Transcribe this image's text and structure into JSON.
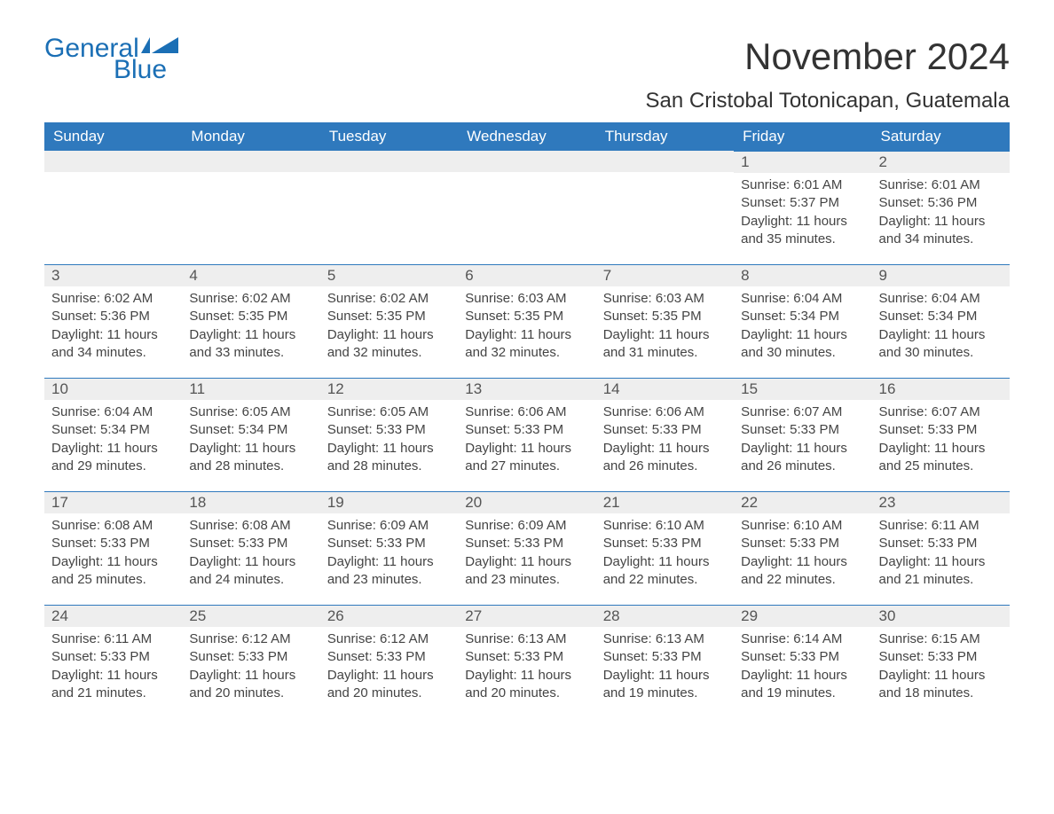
{
  "brand": {
    "word1": "General",
    "word2": "Blue"
  },
  "title": "November 2024",
  "location": "San Cristobal Totonicapan, Guatemala",
  "colors": {
    "header_bg": "#2f79bd",
    "header_text": "#ffffff",
    "daynum_bg": "#eeeeee",
    "border_top": "#2f79bd",
    "brand": "#1b6fb5",
    "body_text": "#444444",
    "page_bg": "#ffffff"
  },
  "day_names": [
    "Sunday",
    "Monday",
    "Tuesday",
    "Wednesday",
    "Thursday",
    "Friday",
    "Saturday"
  ],
  "labels": {
    "sunrise": "Sunrise:",
    "sunset": "Sunset:",
    "daylight": "Daylight:"
  },
  "weeks": [
    [
      null,
      null,
      null,
      null,
      null,
      {
        "day": 1,
        "sunrise": "6:01 AM",
        "sunset": "5:37 PM",
        "daylight": "11 hours and 35 minutes."
      },
      {
        "day": 2,
        "sunrise": "6:01 AM",
        "sunset": "5:36 PM",
        "daylight": "11 hours and 34 minutes."
      }
    ],
    [
      {
        "day": 3,
        "sunrise": "6:02 AM",
        "sunset": "5:36 PM",
        "daylight": "11 hours and 34 minutes."
      },
      {
        "day": 4,
        "sunrise": "6:02 AM",
        "sunset": "5:35 PM",
        "daylight": "11 hours and 33 minutes."
      },
      {
        "day": 5,
        "sunrise": "6:02 AM",
        "sunset": "5:35 PM",
        "daylight": "11 hours and 32 minutes."
      },
      {
        "day": 6,
        "sunrise": "6:03 AM",
        "sunset": "5:35 PM",
        "daylight": "11 hours and 32 minutes."
      },
      {
        "day": 7,
        "sunrise": "6:03 AM",
        "sunset": "5:35 PM",
        "daylight": "11 hours and 31 minutes."
      },
      {
        "day": 8,
        "sunrise": "6:04 AM",
        "sunset": "5:34 PM",
        "daylight": "11 hours and 30 minutes."
      },
      {
        "day": 9,
        "sunrise": "6:04 AM",
        "sunset": "5:34 PM",
        "daylight": "11 hours and 30 minutes."
      }
    ],
    [
      {
        "day": 10,
        "sunrise": "6:04 AM",
        "sunset": "5:34 PM",
        "daylight": "11 hours and 29 minutes."
      },
      {
        "day": 11,
        "sunrise": "6:05 AM",
        "sunset": "5:34 PM",
        "daylight": "11 hours and 28 minutes."
      },
      {
        "day": 12,
        "sunrise": "6:05 AM",
        "sunset": "5:33 PM",
        "daylight": "11 hours and 28 minutes."
      },
      {
        "day": 13,
        "sunrise": "6:06 AM",
        "sunset": "5:33 PM",
        "daylight": "11 hours and 27 minutes."
      },
      {
        "day": 14,
        "sunrise": "6:06 AM",
        "sunset": "5:33 PM",
        "daylight": "11 hours and 26 minutes."
      },
      {
        "day": 15,
        "sunrise": "6:07 AM",
        "sunset": "5:33 PM",
        "daylight": "11 hours and 26 minutes."
      },
      {
        "day": 16,
        "sunrise": "6:07 AM",
        "sunset": "5:33 PM",
        "daylight": "11 hours and 25 minutes."
      }
    ],
    [
      {
        "day": 17,
        "sunrise": "6:08 AM",
        "sunset": "5:33 PM",
        "daylight": "11 hours and 25 minutes."
      },
      {
        "day": 18,
        "sunrise": "6:08 AM",
        "sunset": "5:33 PM",
        "daylight": "11 hours and 24 minutes."
      },
      {
        "day": 19,
        "sunrise": "6:09 AM",
        "sunset": "5:33 PM",
        "daylight": "11 hours and 23 minutes."
      },
      {
        "day": 20,
        "sunrise": "6:09 AM",
        "sunset": "5:33 PM",
        "daylight": "11 hours and 23 minutes."
      },
      {
        "day": 21,
        "sunrise": "6:10 AM",
        "sunset": "5:33 PM",
        "daylight": "11 hours and 22 minutes."
      },
      {
        "day": 22,
        "sunrise": "6:10 AM",
        "sunset": "5:33 PM",
        "daylight": "11 hours and 22 minutes."
      },
      {
        "day": 23,
        "sunrise": "6:11 AM",
        "sunset": "5:33 PM",
        "daylight": "11 hours and 21 minutes."
      }
    ],
    [
      {
        "day": 24,
        "sunrise": "6:11 AM",
        "sunset": "5:33 PM",
        "daylight": "11 hours and 21 minutes."
      },
      {
        "day": 25,
        "sunrise": "6:12 AM",
        "sunset": "5:33 PM",
        "daylight": "11 hours and 20 minutes."
      },
      {
        "day": 26,
        "sunrise": "6:12 AM",
        "sunset": "5:33 PM",
        "daylight": "11 hours and 20 minutes."
      },
      {
        "day": 27,
        "sunrise": "6:13 AM",
        "sunset": "5:33 PM",
        "daylight": "11 hours and 20 minutes."
      },
      {
        "day": 28,
        "sunrise": "6:13 AM",
        "sunset": "5:33 PM",
        "daylight": "11 hours and 19 minutes."
      },
      {
        "day": 29,
        "sunrise": "6:14 AM",
        "sunset": "5:33 PM",
        "daylight": "11 hours and 19 minutes."
      },
      {
        "day": 30,
        "sunrise": "6:15 AM",
        "sunset": "5:33 PM",
        "daylight": "11 hours and 18 minutes."
      }
    ]
  ]
}
